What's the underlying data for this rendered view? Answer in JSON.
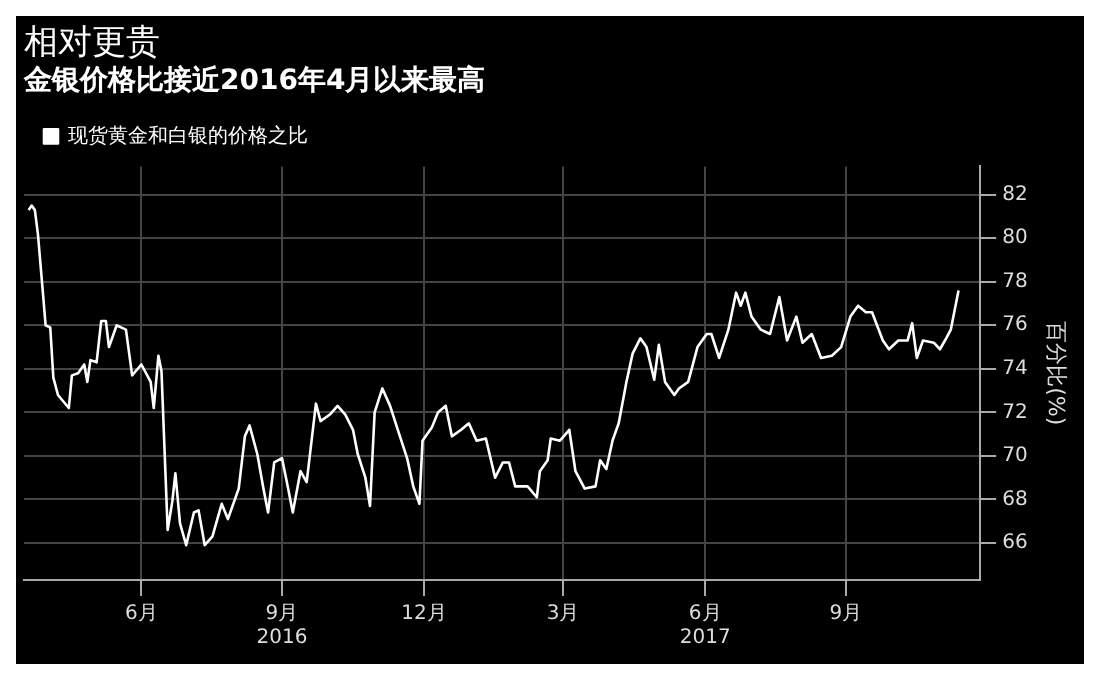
{
  "chart_data": {
    "type": "line",
    "title": "相对更贵",
    "subtitle": "金银价格比接近2016年4月以来最高",
    "ylabel": "百分比(%)",
    "x": [
      "2016-04-04",
      "2016-04-06",
      "2016-04-08",
      "2016-04-10",
      "2016-04-13",
      "2016-04-15",
      "2016-04-18",
      "2016-04-20",
      "2016-04-23",
      "2016-04-30",
      "2016-05-02",
      "2016-05-06",
      "2016-05-10",
      "2016-05-12",
      "2016-05-14",
      "2016-05-18",
      "2016-05-21",
      "2016-05-24",
      "2016-05-26",
      "2016-05-31",
      "2016-06-06",
      "2016-06-10",
      "2016-06-16",
      "2016-06-22",
      "2016-06-24",
      "2016-06-27",
      "2016-06-29",
      "2016-07-03",
      "2016-07-06",
      "2016-07-08",
      "2016-07-11",
      "2016-07-15",
      "2016-07-20",
      "2016-07-23",
      "2016-07-27",
      "2016-08-01",
      "2016-08-07",
      "2016-08-11",
      "2016-08-18",
      "2016-08-22",
      "2016-08-25",
      "2016-08-30",
      "2016-09-03",
      "2016-09-06",
      "2016-09-10",
      "2016-09-15",
      "2016-09-19",
      "2016-09-22",
      "2016-09-27",
      "2016-10-01",
      "2016-10-05",
      "2016-10-07",
      "2016-10-10",
      "2016-10-16",
      "2016-10-21",
      "2016-10-26",
      "2016-10-31",
      "2016-11-03",
      "2016-11-08",
      "2016-11-11",
      "2016-11-14",
      "2016-11-19",
      "2016-11-24",
      "2016-11-29",
      "2016-12-05",
      "2016-12-09",
      "2016-12-13",
      "2016-12-15",
      "2016-12-21",
      "2016-12-25",
      "2016-12-30",
      "2017-01-03",
      "2017-01-09",
      "2017-01-14",
      "2017-01-19",
      "2017-01-25",
      "2017-01-29",
      "2017-01-31",
      "2017-02-05",
      "2017-02-09",
      "2017-02-13",
      "2017-02-21",
      "2017-02-27",
      "2017-03-01",
      "2017-03-06",
      "2017-03-08",
      "2017-03-14",
      "2017-03-20",
      "2017-03-24",
      "2017-03-30",
      "2017-04-06",
      "2017-04-09",
      "2017-04-13",
      "2017-04-17",
      "2017-04-21",
      "2017-04-26",
      "2017-04-30",
      "2017-05-05",
      "2017-05-09",
      "2017-05-14",
      "2017-05-17",
      "2017-05-21",
      "2017-05-27",
      "2017-05-30",
      "2017-06-05",
      "2017-06-11",
      "2017-06-17",
      "2017-06-20",
      "2017-06-25",
      "2017-07-01",
      "2017-07-06",
      "2017-07-09",
      "2017-07-12",
      "2017-07-16",
      "2017-07-22",
      "2017-07-28",
      "2017-08-03",
      "2017-08-08",
      "2017-08-14",
      "2017-08-18",
      "2017-08-24",
      "2017-08-30",
      "2017-09-06",
      "2017-09-12",
      "2017-09-18",
      "2017-09-23",
      "2017-09-28",
      "2017-10-02",
      "2017-10-09",
      "2017-10-13",
      "2017-10-19",
      "2017-10-25",
      "2017-10-28",
      "2017-10-31",
      "2017-11-04",
      "2017-11-11",
      "2017-11-15",
      "2017-11-19",
      "2017-11-22",
      "2017-11-27"
    ],
    "series": [
      {
        "name": "现货黄金和白银的价格之比",
        "color": "#ffffff",
        "values": [
          81.3,
          81.5,
          81.3,
          80.2,
          77.7,
          76.0,
          75.9,
          73.6,
          72.8,
          72.2,
          73.7,
          73.8,
          74.2,
          73.4,
          74.4,
          74.3,
          76.2,
          76.2,
          75.0,
          76.0,
          75.8,
          73.7,
          74.2,
          73.4,
          72.2,
          74.6,
          73.9,
          66.6,
          67.9,
          69.2,
          66.9,
          65.9,
          67.4,
          67.5,
          65.9,
          66.3,
          67.8,
          67.1,
          68.5,
          70.9,
          71.4,
          70.1,
          68.5,
          67.4,
          69.7,
          69.9,
          68.5,
          67.4,
          69.3,
          68.8,
          71.2,
          72.4,
          71.6,
          71.9,
          72.3,
          71.9,
          71.2,
          70.1,
          69.0,
          67.7,
          72.0,
          73.1,
          72.3,
          71.2,
          69.9,
          68.6,
          67.8,
          70.7,
          71.3,
          72.0,
          72.3,
          70.9,
          71.2,
          71.5,
          70.7,
          70.8,
          69.6,
          69.0,
          69.7,
          69.7,
          68.6,
          68.6,
          68.1,
          69.3,
          69.8,
          70.8,
          70.7,
          71.2,
          69.3,
          68.5,
          68.6,
          69.8,
          69.4,
          70.7,
          71.5,
          73.4,
          74.7,
          75.4,
          75.0,
          73.5,
          75.1,
          73.4,
          72.8,
          73.1,
          73.4,
          75.0,
          75.6,
          75.6,
          74.5,
          75.8,
          77.5,
          76.9,
          77.5,
          76.4,
          75.8,
          75.6,
          77.3,
          75.3,
          76.4,
          75.2,
          75.6,
          74.5,
          74.6,
          75.0,
          76.4,
          76.9,
          76.6,
          76.6,
          75.3,
          74.9,
          75.3,
          75.3,
          76.1,
          74.5,
          75.3,
          75.2,
          74.9,
          75.4,
          75.8,
          77.6
        ]
      }
    ],
    "xlim": [
      "2016-04-01",
      "2017-12-11"
    ],
    "xticks": [
      {
        "value": "2016-06-16",
        "label": "6月"
      },
      {
        "value": "2016-09-15",
        "label": "9月\n2016"
      },
      {
        "value": "2016-12-16",
        "label": "12月"
      },
      {
        "value": "2017-03-16",
        "label": "3月"
      },
      {
        "value": "2017-06-16",
        "label": "6月\n2017"
      },
      {
        "value": "2017-09-15",
        "label": "9月"
      }
    ],
    "ylim": [
      64.3,
      83.3
    ],
    "yticks": [
      66,
      68,
      70,
      72,
      74,
      76,
      78,
      80,
      82
    ],
    "grid": true,
    "legend": "top left",
    "marker": "none",
    "line_style": "solid"
  }
}
